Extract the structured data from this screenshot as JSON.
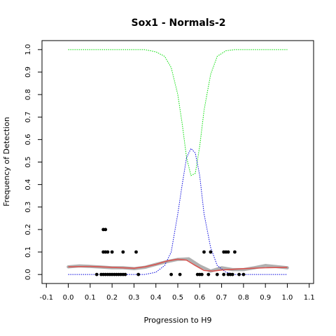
{
  "chart_data": {
    "type": "scatter",
    "title": "Sox1 - Normals-2",
    "xlabel": "Progression to H9",
    "ylabel": "Frequency of Detection",
    "xlim": [
      -0.12,
      1.12
    ],
    "ylim": [
      -0.04,
      1.04
    ],
    "xticks": [
      "-0.1",
      "0.0",
      "0.1",
      "0.2",
      "0.3",
      "0.4",
      "0.5",
      "0.6",
      "0.7",
      "0.8",
      "0.9",
      "1.0",
      "1.1"
    ],
    "yticks": [
      "0.0",
      "0.1",
      "0.2",
      "0.3",
      "0.4",
      "0.5",
      "0.6",
      "0.7",
      "0.8",
      "0.9",
      "1.0"
    ],
    "grid": false,
    "legend": "none",
    "points": [
      {
        "x": 0.13,
        "y": 0.0
      },
      {
        "x": 0.15,
        "y": 0.0
      },
      {
        "x": 0.16,
        "y": 0.0
      },
      {
        "x": 0.17,
        "y": 0.0
      },
      {
        "x": 0.18,
        "y": 0.0
      },
      {
        "x": 0.19,
        "y": 0.0
      },
      {
        "x": 0.2,
        "y": 0.0
      },
      {
        "x": 0.21,
        "y": 0.0
      },
      {
        "x": 0.22,
        "y": 0.0
      },
      {
        "x": 0.23,
        "y": 0.0
      },
      {
        "x": 0.24,
        "y": 0.0
      },
      {
        "x": 0.25,
        "y": 0.0
      },
      {
        "x": 0.26,
        "y": 0.0
      },
      {
        "x": 0.32,
        "y": 0.0
      },
      {
        "x": 0.47,
        "y": 0.0
      },
      {
        "x": 0.51,
        "y": 0.0
      },
      {
        "x": 0.59,
        "y": 0.0
      },
      {
        "x": 0.6,
        "y": 0.0
      },
      {
        "x": 0.61,
        "y": 0.0
      },
      {
        "x": 0.64,
        "y": 0.0
      },
      {
        "x": 0.68,
        "y": 0.0
      },
      {
        "x": 0.71,
        "y": 0.0
      },
      {
        "x": 0.73,
        "y": 0.0
      },
      {
        "x": 0.74,
        "y": 0.0
      },
      {
        "x": 0.75,
        "y": 0.0
      },
      {
        "x": 0.78,
        "y": 0.0
      },
      {
        "x": 0.8,
        "y": 0.0
      },
      {
        "x": 0.16,
        "y": 0.1
      },
      {
        "x": 0.17,
        "y": 0.1
      },
      {
        "x": 0.18,
        "y": 0.1
      },
      {
        "x": 0.2,
        "y": 0.1
      },
      {
        "x": 0.25,
        "y": 0.1
      },
      {
        "x": 0.31,
        "y": 0.1
      },
      {
        "x": 0.62,
        "y": 0.1
      },
      {
        "x": 0.65,
        "y": 0.1
      },
      {
        "x": 0.71,
        "y": 0.1
      },
      {
        "x": 0.72,
        "y": 0.1
      },
      {
        "x": 0.73,
        "y": 0.1
      },
      {
        "x": 0.76,
        "y": 0.1
      },
      {
        "x": 0.16,
        "y": 0.2
      },
      {
        "x": 0.17,
        "y": 0.2
      }
    ],
    "series": [
      {
        "color": "#00dd00",
        "style": "dotted",
        "x": [
          0.0,
          0.35,
          0.4,
          0.44,
          0.47,
          0.5,
          0.52,
          0.54,
          0.56,
          0.58,
          0.6,
          0.62,
          0.65,
          0.68,
          0.72,
          0.76,
          1.0
        ],
        "values": [
          1.0,
          1.0,
          0.99,
          0.97,
          0.92,
          0.8,
          0.67,
          0.52,
          0.44,
          0.45,
          0.57,
          0.73,
          0.89,
          0.97,
          0.995,
          1.0,
          1.0
        ]
      },
      {
        "color": "#0000dd",
        "style": "dotted",
        "x": [
          0.0,
          0.35,
          0.4,
          0.44,
          0.47,
          0.5,
          0.52,
          0.54,
          0.56,
          0.58,
          0.6,
          0.62,
          0.65,
          0.68,
          0.72,
          0.76,
          1.0
        ],
        "values": [
          0.0,
          0.0,
          0.01,
          0.04,
          0.1,
          0.27,
          0.4,
          0.52,
          0.56,
          0.54,
          0.44,
          0.27,
          0.12,
          0.04,
          0.01,
          0.0,
          0.0
        ]
      },
      {
        "color": "#d9534f",
        "style": "solid",
        "x": [
          0.0,
          0.1,
          0.2,
          0.3,
          0.35,
          0.4,
          0.45,
          0.5,
          0.54,
          0.58,
          0.62,
          0.66,
          0.7,
          0.8,
          0.9,
          1.0
        ],
        "values": [
          0.034,
          0.036,
          0.032,
          0.028,
          0.034,
          0.045,
          0.06,
          0.068,
          0.064,
          0.04,
          0.018,
          0.015,
          0.02,
          0.026,
          0.03,
          0.032
        ]
      },
      {
        "color": "#b0b0b0",
        "style": "thick",
        "x": [
          0.0,
          0.05,
          0.1,
          0.15,
          0.2,
          0.25,
          0.3,
          0.35,
          0.4,
          0.45,
          0.5,
          0.55,
          0.6,
          0.65,
          0.7,
          0.75,
          0.8,
          0.85,
          0.9,
          0.95,
          1.0
        ],
        "values": [
          0.034,
          0.038,
          0.036,
          0.033,
          0.03,
          0.03,
          0.026,
          0.032,
          0.045,
          0.057,
          0.067,
          0.07,
          0.038,
          0.015,
          0.03,
          0.022,
          0.022,
          0.03,
          0.04,
          0.035,
          0.03
        ]
      }
    ]
  }
}
